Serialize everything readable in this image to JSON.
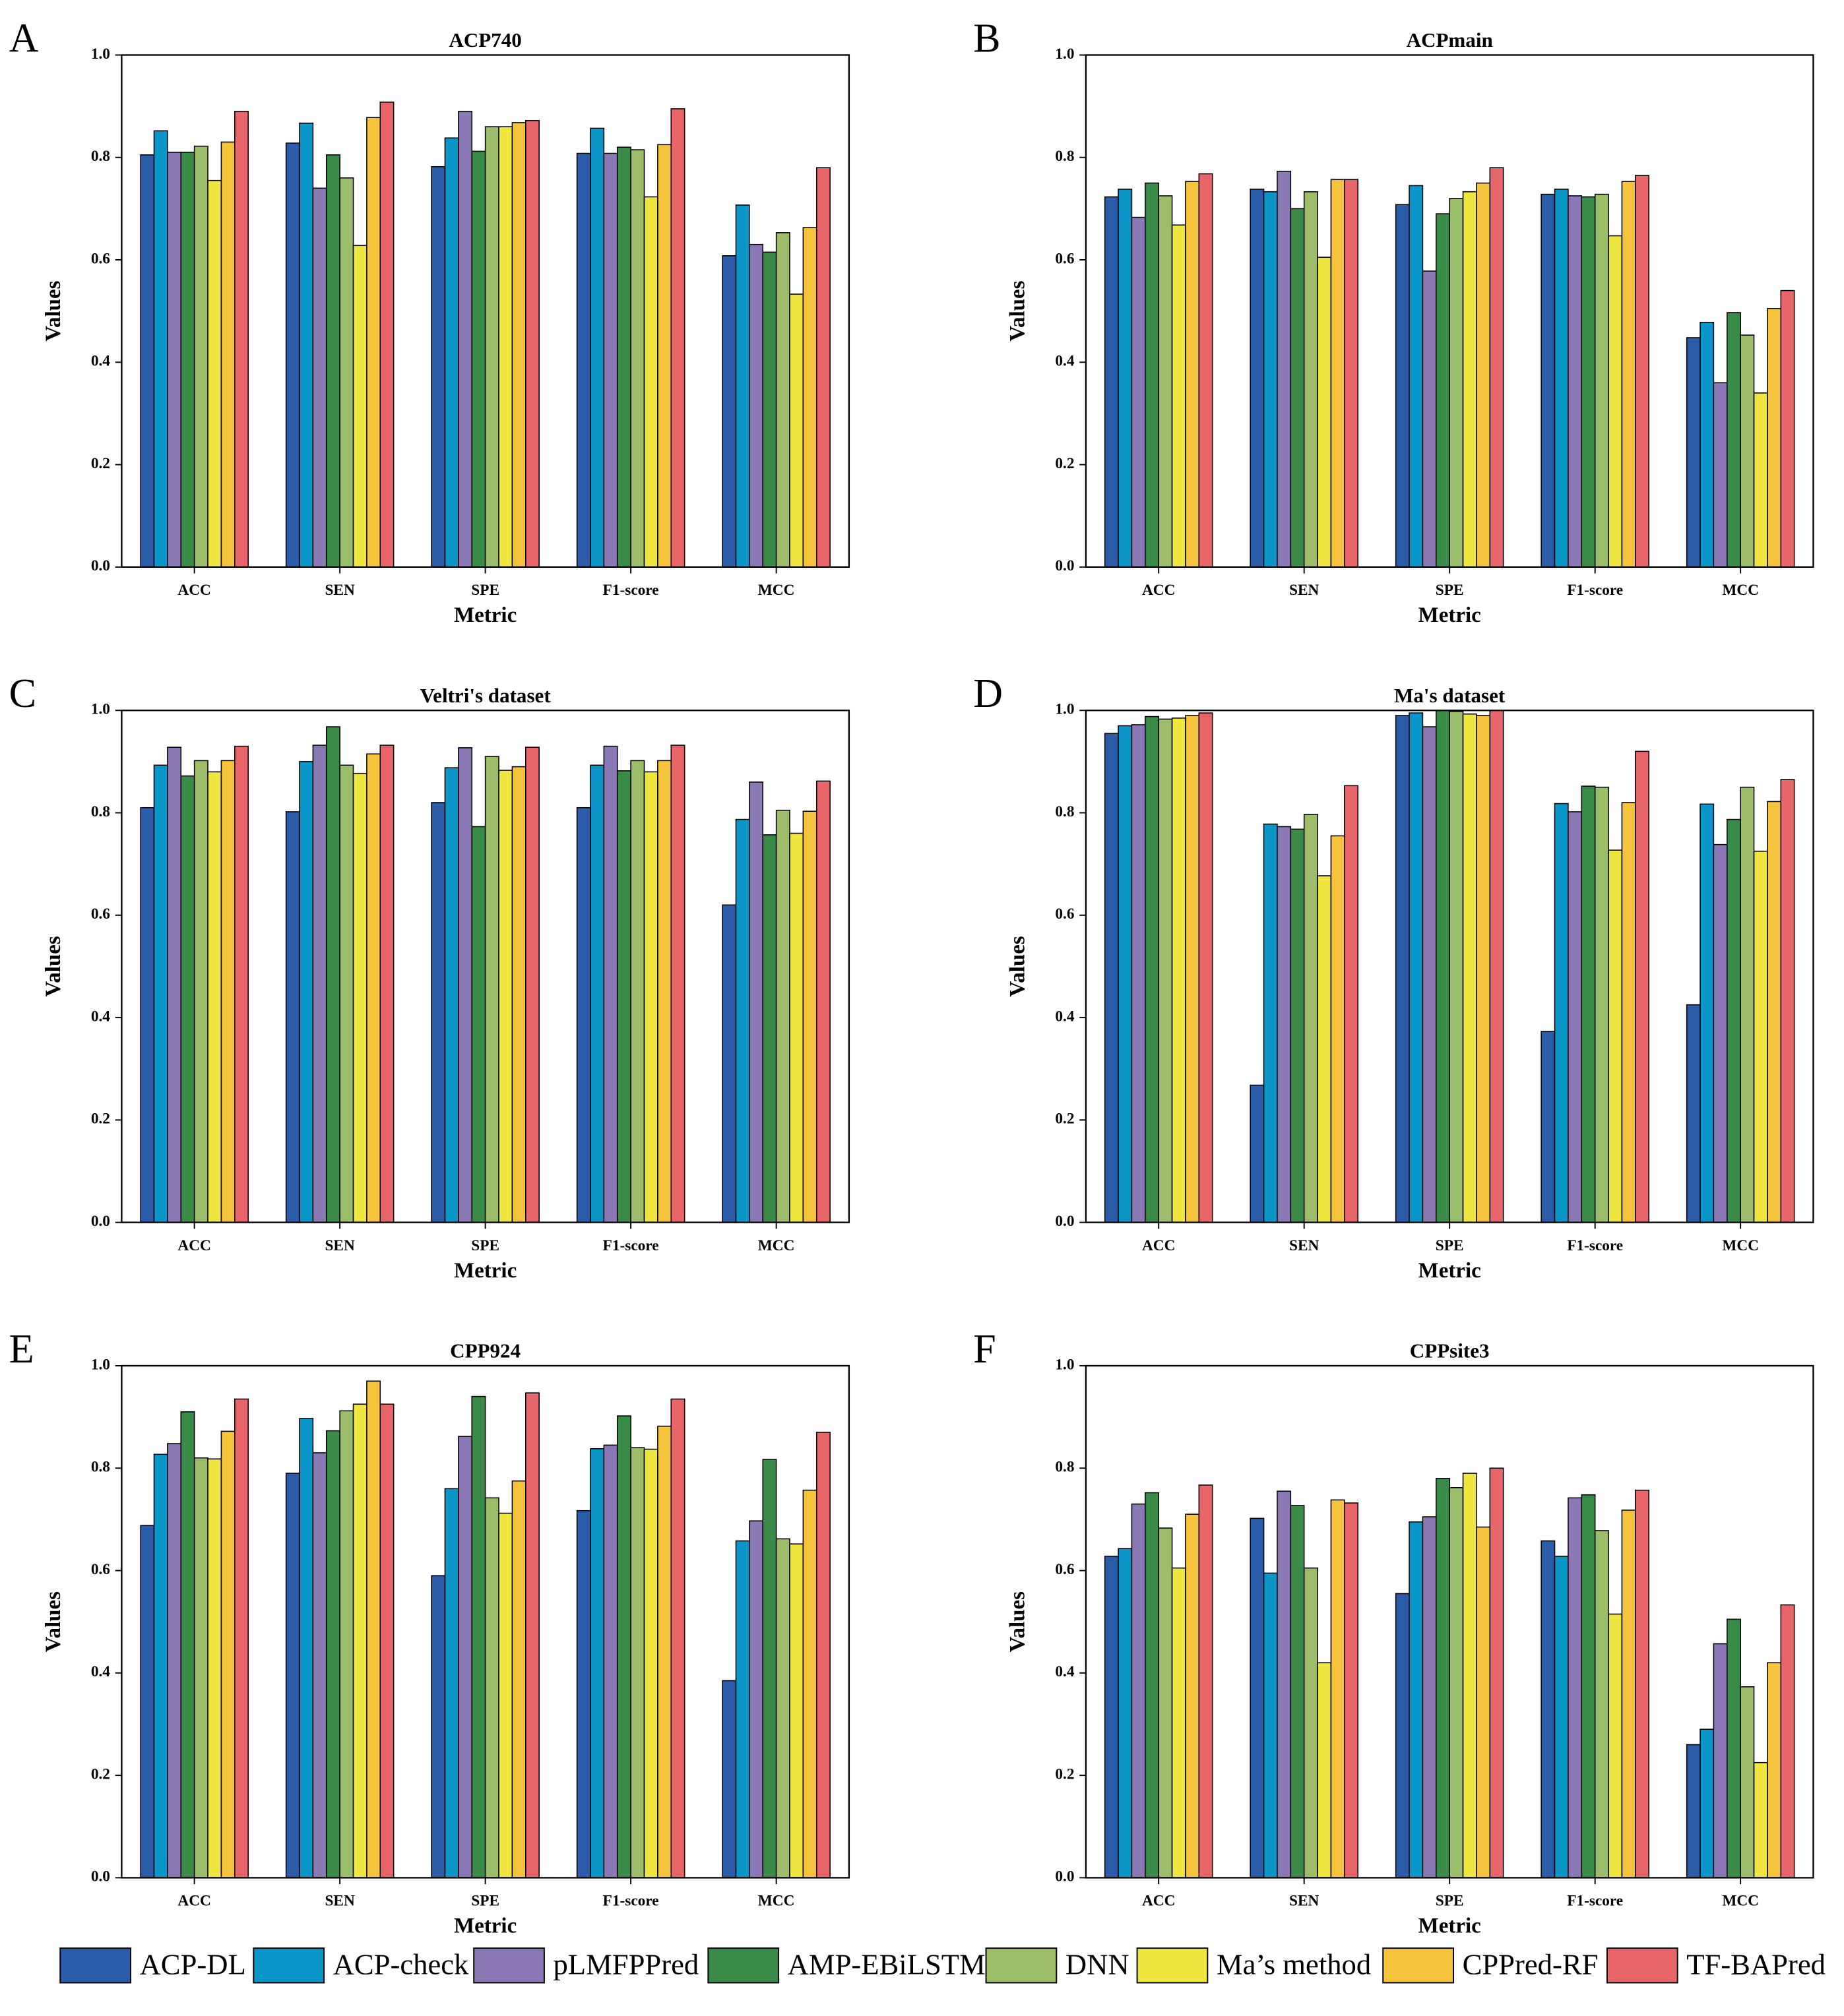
{
  "chart_data": [
    {
      "type": "bar",
      "panel": "A",
      "title": "ACP740",
      "x_label": "Metric",
      "y_label": "Values",
      "categories": [
        "ACC",
        "SEN",
        "SPE",
        "F1-score",
        "MCC"
      ],
      "ylim": [
        0,
        1
      ],
      "yticks": [
        {
          "value": 0,
          "label": "0.0"
        },
        0.2,
        0.4,
        0.6,
        0.8,
        {
          "value": 1,
          "label": "1.0"
        }
      ],
      "series": [
        {
          "name": "ACP-DL",
          "color": "#2a5caa",
          "values": [
            0.805,
            0.828,
            0.782,
            0.808,
            0.608
          ]
        },
        {
          "name": "ACP-check",
          "color": "#0a96c8",
          "values": [
            0.852,
            0.867,
            0.838,
            0.857,
            0.707
          ]
        },
        {
          "name": "pLMFPPred",
          "color": "#8a79b4",
          "values": [
            0.81,
            0.74,
            0.89,
            0.808,
            0.63
          ]
        },
        {
          "name": "AMP-EBiLSTM",
          "color": "#3a8a48",
          "values": [
            0.81,
            0.805,
            0.812,
            0.82,
            0.615
          ]
        },
        {
          "name": "DNN",
          "color": "#9cbe6a",
          "values": [
            0.822,
            0.76,
            0.86,
            0.815,
            0.653
          ]
        },
        {
          "name": "Ma’s method",
          "color": "#f0e640",
          "values": [
            0.755,
            0.628,
            0.86,
            0.723,
            0.533
          ]
        },
        {
          "name": "CPPred-RF",
          "color": "#f5c43c",
          "values": [
            0.83,
            0.878,
            0.868,
            0.825,
            0.663
          ]
        },
        {
          "name": "TF-BAPred",
          "color": "#e8666a",
          "values": [
            0.89,
            0.908,
            0.872,
            0.895,
            0.78
          ]
        }
      ]
    },
    {
      "type": "bar",
      "panel": "B",
      "title": "ACPmain",
      "x_label": "Metric",
      "y_label": "Values",
      "categories": [
        "ACC",
        "SEN",
        "SPE",
        "F1-score",
        "MCC"
      ],
      "ylim": [
        0,
        1
      ],
      "yticks": [
        {
          "value": 0,
          "label": "0.0"
        },
        0.2,
        0.4,
        0.6,
        0.8,
        {
          "value": 1,
          "label": "1.0"
        }
      ],
      "series": [
        {
          "name": "ACP-DL",
          "color": "#2a5caa",
          "values": [
            0.723,
            0.738,
            0.708,
            0.728,
            0.448
          ]
        },
        {
          "name": "ACP-check",
          "color": "#0a96c8",
          "values": [
            0.738,
            0.733,
            0.745,
            0.738,
            0.478
          ]
        },
        {
          "name": "pLMFPPred",
          "color": "#8a79b4",
          "values": [
            0.683,
            0.773,
            0.578,
            0.725,
            0.36
          ]
        },
        {
          "name": "AMP-EBiLSTM",
          "color": "#3a8a48",
          "values": [
            0.75,
            0.7,
            0.69,
            0.723,
            0.497
          ]
        },
        {
          "name": "DNN",
          "color": "#9cbe6a",
          "values": [
            0.725,
            0.733,
            0.72,
            0.728,
            0.453
          ]
        },
        {
          "name": "Ma’s method",
          "color": "#f0e640",
          "values": [
            0.668,
            0.605,
            0.733,
            0.647,
            0.34
          ]
        },
        {
          "name": "CPPred-RF",
          "color": "#f5c43c",
          "values": [
            0.753,
            0.757,
            0.75,
            0.753,
            0.505
          ]
        },
        {
          "name": "TF-BAPred",
          "color": "#e8666a",
          "values": [
            0.768,
            0.757,
            0.78,
            0.765,
            0.54
          ]
        }
      ]
    },
    {
      "type": "bar",
      "panel": "C",
      "title": "Veltri's dataset",
      "x_label": "Metric",
      "y_label": "Values",
      "categories": [
        "ACC",
        "SEN",
        "SPE",
        "F1-score",
        "MCC"
      ],
      "ylim": [
        0,
        1
      ],
      "yticks": [
        {
          "value": 0,
          "label": "0.0"
        },
        0.2,
        0.4,
        0.6,
        0.8,
        {
          "value": 1,
          "label": "1.0"
        }
      ],
      "series": [
        {
          "name": "ACP-DL",
          "color": "#2a5caa",
          "values": [
            0.81,
            0.802,
            0.82,
            0.81,
            0.62
          ]
        },
        {
          "name": "ACP-check",
          "color": "#0a96c8",
          "values": [
            0.893,
            0.9,
            0.888,
            0.893,
            0.787
          ]
        },
        {
          "name": "pLMFPPred",
          "color": "#8a79b4",
          "values": [
            0.928,
            0.932,
            0.927,
            0.93,
            0.86
          ]
        },
        {
          "name": "AMP-EBiLSTM",
          "color": "#3a8a48",
          "values": [
            0.872,
            0.968,
            0.773,
            0.882,
            0.757
          ]
        },
        {
          "name": "DNN",
          "color": "#9cbe6a",
          "values": [
            0.902,
            0.893,
            0.91,
            0.902,
            0.805
          ]
        },
        {
          "name": "Ma’s method",
          "color": "#f0e640",
          "values": [
            0.88,
            0.877,
            0.883,
            0.88,
            0.76
          ]
        },
        {
          "name": "CPPred-RF",
          "color": "#f5c43c",
          "values": [
            0.902,
            0.915,
            0.89,
            0.902,
            0.803
          ]
        },
        {
          "name": "TF-BAPred",
          "color": "#e8666a",
          "values": [
            0.93,
            0.932,
            0.928,
            0.932,
            0.862
          ]
        }
      ]
    },
    {
      "type": "bar",
      "panel": "D",
      "title": "Ma's dataset",
      "x_label": "Metric",
      "y_label": "Values",
      "categories": [
        "ACC",
        "SEN",
        "SPE",
        "F1-score",
        "MCC"
      ],
      "ylim": [
        0,
        1
      ],
      "yticks": [
        {
          "value": 0,
          "label": "0.0"
        },
        0.2,
        0.4,
        0.6,
        0.8,
        {
          "value": 1,
          "label": "1.0"
        }
      ],
      "series": [
        {
          "name": "ACP-DL",
          "color": "#2a5caa",
          "values": [
            0.955,
            0.268,
            0.99,
            0.373,
            0.425
          ]
        },
        {
          "name": "ACP-check",
          "color": "#0a96c8",
          "values": [
            0.97,
            0.778,
            0.995,
            0.818,
            0.817
          ]
        },
        {
          "name": "pLMFPPred",
          "color": "#8a79b4",
          "values": [
            0.972,
            0.773,
            0.968,
            0.802,
            0.738
          ]
        },
        {
          "name": "AMP-EBiLSTM",
          "color": "#3a8a48",
          "values": [
            0.988,
            0.768,
            1.0,
            0.852,
            0.787
          ]
        },
        {
          "name": "DNN",
          "color": "#9cbe6a",
          "values": [
            0.983,
            0.797,
            0.998,
            0.85,
            0.85
          ]
        },
        {
          "name": "Ma’s method",
          "color": "#f0e640",
          "values": [
            0.985,
            0.677,
            0.993,
            0.727,
            0.725
          ]
        },
        {
          "name": "CPPred-RF",
          "color": "#f5c43c",
          "values": [
            0.99,
            0.755,
            0.99,
            0.82,
            0.822
          ]
        },
        {
          "name": "TF-BAPred",
          "color": "#e8666a",
          "values": [
            0.995,
            0.853,
            1.0,
            0.92,
            0.865
          ]
        }
      ]
    },
    {
      "type": "bar",
      "panel": "E",
      "title": "CPP924",
      "x_label": "Metric",
      "y_label": "Values",
      "categories": [
        "ACC",
        "SEN",
        "SPE",
        "F1-score",
        "MCC"
      ],
      "ylim": [
        0,
        1
      ],
      "yticks": [
        {
          "value": 0,
          "label": "0.0"
        },
        0.2,
        0.4,
        0.6,
        0.8,
        {
          "value": 1,
          "label": "1.0"
        }
      ],
      "series": [
        {
          "name": "ACP-DL",
          "color": "#2a5caa",
          "values": [
            0.688,
            0.79,
            0.59,
            0.717,
            0.385
          ]
        },
        {
          "name": "ACP-check",
          "color": "#0a96c8",
          "values": [
            0.827,
            0.897,
            0.76,
            0.838,
            0.658
          ]
        },
        {
          "name": "pLMFPPred",
          "color": "#8a79b4",
          "values": [
            0.848,
            0.83,
            0.862,
            0.845,
            0.697
          ]
        },
        {
          "name": "AMP-EBiLSTM",
          "color": "#3a8a48",
          "values": [
            0.91,
            0.873,
            0.94,
            0.902,
            0.817
          ]
        },
        {
          "name": "DNN",
          "color": "#9cbe6a",
          "values": [
            0.82,
            0.912,
            0.742,
            0.84,
            0.662
          ]
        },
        {
          "name": "Ma’s method",
          "color": "#f0e640",
          "values": [
            0.818,
            0.925,
            0.712,
            0.837,
            0.652
          ]
        },
        {
          "name": "CPPred-RF",
          "color": "#f5c43c",
          "values": [
            0.872,
            0.97,
            0.775,
            0.882,
            0.757
          ]
        },
        {
          "name": "TF-BAPred",
          "color": "#e8666a",
          "values": [
            0.935,
            0.925,
            0.947,
            0.935,
            0.87
          ]
        }
      ]
    },
    {
      "type": "bar",
      "panel": "F",
      "title": "CPPsite3",
      "x_label": "Metric",
      "y_label": "Values",
      "categories": [
        "ACC",
        "SEN",
        "SPE",
        "F1-score",
        "MCC"
      ],
      "ylim": [
        0,
        1
      ],
      "yticks": [
        {
          "value": 0,
          "label": "0.0"
        },
        0.2,
        0.4,
        0.6,
        0.8,
        {
          "value": 1,
          "label": "1.0"
        }
      ],
      "series": [
        {
          "name": "ACP-DL",
          "color": "#2a5caa",
          "values": [
            0.628,
            0.702,
            0.555,
            0.658,
            0.26
          ]
        },
        {
          "name": "ACP-check",
          "color": "#0a96c8",
          "values": [
            0.643,
            0.595,
            0.695,
            0.628,
            0.29
          ]
        },
        {
          "name": "pLMFPPred",
          "color": "#8a79b4",
          "values": [
            0.73,
            0.755,
            0.705,
            0.742,
            0.457
          ]
        },
        {
          "name": "AMP-EBiLSTM",
          "color": "#3a8a48",
          "values": [
            0.752,
            0.727,
            0.78,
            0.748,
            0.505
          ]
        },
        {
          "name": "DNN",
          "color": "#9cbe6a",
          "values": [
            0.683,
            0.605,
            0.762,
            0.678,
            0.373
          ]
        },
        {
          "name": "Ma’s method",
          "color": "#f0e640",
          "values": [
            0.605,
            0.42,
            0.79,
            0.515,
            0.225
          ]
        },
        {
          "name": "CPPred-RF",
          "color": "#f5c43c",
          "values": [
            0.71,
            0.738,
            0.685,
            0.718,
            0.42
          ]
        },
        {
          "name": "TF-BAPred",
          "color": "#e8666a",
          "values": [
            0.767,
            0.732,
            0.8,
            0.757,
            0.533
          ]
        }
      ]
    }
  ]
}
